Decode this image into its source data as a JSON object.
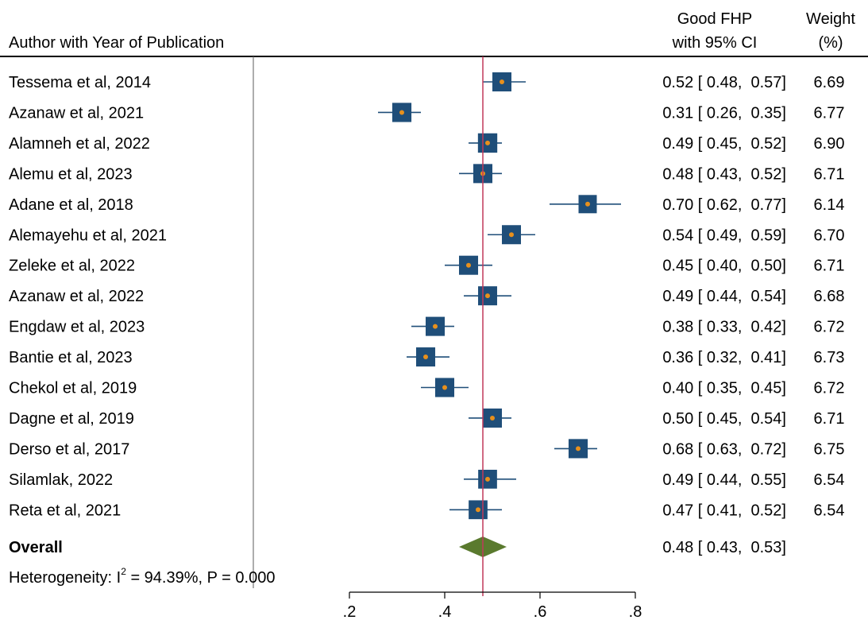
{
  "chart_data": {
    "type": "forest",
    "header": {
      "study_label": "Author with Year of Publication",
      "effect_label_line1": "Good FHP",
      "effect_label_line2": "with 95% CI",
      "weight_label_line1": "Weight",
      "weight_label_line2": "(%)"
    },
    "studies": [
      {
        "label": "Tessema et al, 2014",
        "es": 0.52,
        "lo": 0.48,
        "hi": 0.57,
        "ci_text": "0.52 [ 0.48,  0.57]",
        "weight": "6.69"
      },
      {
        "label": "Azanaw et al, 2021",
        "es": 0.31,
        "lo": 0.26,
        "hi": 0.35,
        "ci_text": "0.31 [ 0.26,  0.35]",
        "weight": "6.77"
      },
      {
        "label": "Alamneh et al, 2022",
        "es": 0.49,
        "lo": 0.45,
        "hi": 0.52,
        "ci_text": "0.49 [ 0.45,  0.52]",
        "weight": "6.90"
      },
      {
        "label": "Alemu et al, 2023",
        "es": 0.48,
        "lo": 0.43,
        "hi": 0.52,
        "ci_text": "0.48 [ 0.43,  0.52]",
        "weight": "6.71"
      },
      {
        "label": "Adane et al, 2018",
        "es": 0.7,
        "lo": 0.62,
        "hi": 0.77,
        "ci_text": "0.70 [ 0.62,  0.77]",
        "weight": "6.14"
      },
      {
        "label": "Alemayehu et al, 2021",
        "es": 0.54,
        "lo": 0.49,
        "hi": 0.59,
        "ci_text": "0.54 [ 0.49,  0.59]",
        "weight": "6.70"
      },
      {
        "label": "Zeleke et al, 2022",
        "es": 0.45,
        "lo": 0.4,
        "hi": 0.5,
        "ci_text": "0.45 [ 0.40,  0.50]",
        "weight": "6.71"
      },
      {
        "label": "Azanaw et al, 2022",
        "es": 0.49,
        "lo": 0.44,
        "hi": 0.54,
        "ci_text": "0.49 [ 0.44,  0.54]",
        "weight": "6.68"
      },
      {
        "label": "Engdaw et al, 2023",
        "es": 0.38,
        "lo": 0.33,
        "hi": 0.42,
        "ci_text": "0.38 [ 0.33,  0.42]",
        "weight": "6.72"
      },
      {
        "label": "Bantie et al, 2023",
        "es": 0.36,
        "lo": 0.32,
        "hi": 0.41,
        "ci_text": "0.36 [ 0.32,  0.41]",
        "weight": "6.73"
      },
      {
        "label": "Chekol et al, 2019",
        "es": 0.4,
        "lo": 0.35,
        "hi": 0.45,
        "ci_text": "0.40 [ 0.35,  0.45]",
        "weight": "6.72"
      },
      {
        "label": "Dagne et al, 2019",
        "es": 0.5,
        "lo": 0.45,
        "hi": 0.54,
        "ci_text": "0.50 [ 0.45,  0.54]",
        "weight": "6.71"
      },
      {
        "label": "Derso et al, 2017",
        "es": 0.68,
        "lo": 0.63,
        "hi": 0.72,
        "ci_text": "0.68 [ 0.63,  0.72]",
        "weight": "6.75"
      },
      {
        "label": "Silamlak, 2022",
        "es": 0.49,
        "lo": 0.44,
        "hi": 0.55,
        "ci_text": "0.49 [ 0.44,  0.55]",
        "weight": "6.54"
      },
      {
        "label": "Reta et al, 2021",
        "es": 0.47,
        "lo": 0.41,
        "hi": 0.52,
        "ci_text": "0.47 [ 0.41,  0.52]",
        "weight": "6.54"
      }
    ],
    "overall": {
      "label": "Overall",
      "es": 0.48,
      "lo": 0.43,
      "hi": 0.53,
      "ci_text": "0.48 [ 0.43,  0.53]"
    },
    "heterogeneity": {
      "prefix": "Heterogeneity: I",
      "sup": "2",
      "suffix": " = 94.39%, P = 0.000"
    },
    "x_ticks": [
      {
        "value": 0.2,
        "label": ".2"
      },
      {
        "value": 0.4,
        "label": ".4"
      },
      {
        "value": 0.6,
        "label": ".6"
      },
      {
        "value": 0.8,
        "label": ".8"
      }
    ],
    "xlim": [
      0.2,
      0.8
    ],
    "reference_line": 0.48,
    "colors": {
      "box": "#1f4e79",
      "point": "#e8901c",
      "ci_line": "#1f4e79",
      "diamond": "#5a7a2e",
      "reference_line": "#c0395a",
      "axis": "#000000",
      "separator": "#777777"
    }
  }
}
